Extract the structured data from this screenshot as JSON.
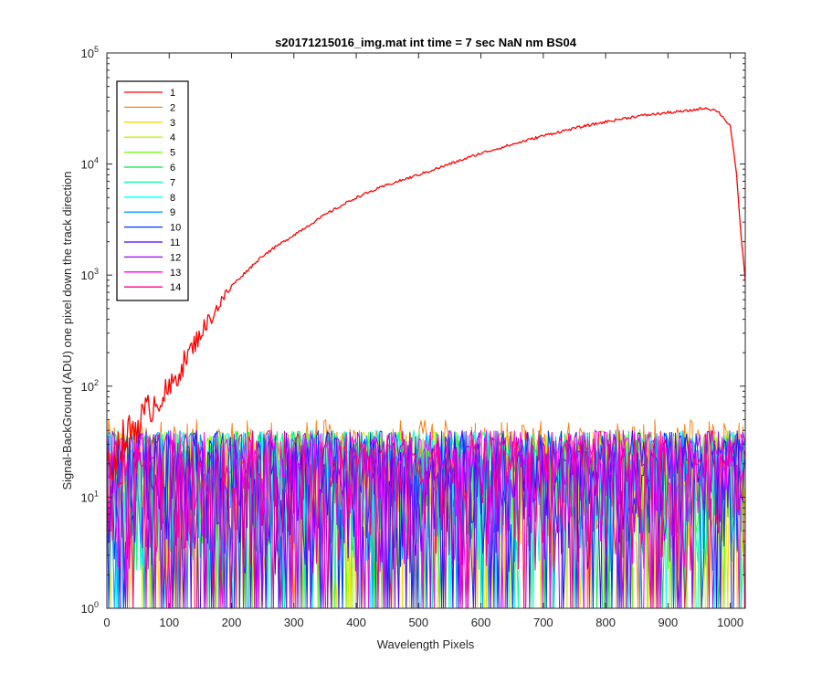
{
  "chart_data": {
    "type": "line",
    "title": "s20171215016_img.mat int time = 7 sec  NaN nm BS04",
    "xlabel": "Wavelength Pixels",
    "ylabel": "Signal-BackGround (ADU) one pixel down the track direction",
    "xlim": [
      0,
      1024
    ],
    "ylim": [
      1,
      100000
    ],
    "yscale": "log",
    "grid": false,
    "legend_position": "top-left",
    "x_ticks": [
      "0",
      "100",
      "200",
      "300",
      "400",
      "500",
      "600",
      "700",
      "800",
      "900",
      "1000"
    ],
    "y_ticks": [
      {
        "base": "10",
        "exp": "0"
      },
      {
        "base": "10",
        "exp": "1"
      },
      {
        "base": "10",
        "exp": "2"
      },
      {
        "base": "10",
        "exp": "3"
      },
      {
        "base": "10",
        "exp": "4"
      },
      {
        "base": "10",
        "exp": "5"
      }
    ],
    "series": [
      {
        "name": "1",
        "color": "#ff0000",
        "kind": "signal",
        "points": [
          [
            0,
            15
          ],
          [
            20,
            30
          ],
          [
            40,
            40
          ],
          [
            60,
            55
          ],
          [
            80,
            75
          ],
          [
            100,
            90
          ],
          [
            120,
            150
          ],
          [
            150,
            300
          ],
          [
            200,
            800
          ],
          [
            250,
            1500
          ],
          [
            300,
            2300
          ],
          [
            350,
            3500
          ],
          [
            400,
            5000
          ],
          [
            450,
            6500
          ],
          [
            500,
            8000
          ],
          [
            550,
            10000
          ],
          [
            600,
            12500
          ],
          [
            650,
            15000
          ],
          [
            700,
            18000
          ],
          [
            750,
            21000
          ],
          [
            800,
            24000
          ],
          [
            850,
            27000
          ],
          [
            900,
            29000
          ],
          [
            930,
            30000
          ],
          [
            960,
            32000
          ],
          [
            980,
            30000
          ],
          [
            1000,
            22000
          ],
          [
            1010,
            8000
          ],
          [
            1018,
            2000
          ],
          [
            1024,
            900
          ]
        ]
      },
      {
        "name": "2",
        "color": "#ff7f0e",
        "kind": "noise",
        "peak": [
          15,
          50
        ]
      },
      {
        "name": "3",
        "color": "#ffd800",
        "kind": "noise",
        "peak": [
          12,
          40
        ]
      },
      {
        "name": "4",
        "color": "#c8f000",
        "kind": "noise",
        "peak": [
          12,
          40
        ]
      },
      {
        "name": "5",
        "color": "#66ff00",
        "kind": "noise",
        "peak": [
          12,
          40
        ]
      },
      {
        "name": "6",
        "color": "#00e640",
        "kind": "noise",
        "peak": [
          12,
          40
        ]
      },
      {
        "name": "7",
        "color": "#00ff99",
        "kind": "noise",
        "peak": [
          12,
          40
        ]
      },
      {
        "name": "8",
        "color": "#00ffff",
        "kind": "noise",
        "peak": [
          12,
          40
        ]
      },
      {
        "name": "9",
        "color": "#00a0ff",
        "kind": "noise",
        "peak": [
          12,
          40
        ]
      },
      {
        "name": "10",
        "color": "#0033ff",
        "kind": "noise",
        "peak": [
          12,
          40
        ]
      },
      {
        "name": "11",
        "color": "#4a00ff",
        "kind": "noise",
        "peak": [
          12,
          40
        ]
      },
      {
        "name": "12",
        "color": "#a000ff",
        "kind": "noise",
        "peak": [
          12,
          40
        ]
      },
      {
        "name": "13",
        "color": "#ff00ff",
        "kind": "noise",
        "peak": [
          12,
          40
        ]
      },
      {
        "name": "14",
        "color": "#ff0080",
        "kind": "noise",
        "peak": [
          12,
          40
        ]
      }
    ]
  }
}
